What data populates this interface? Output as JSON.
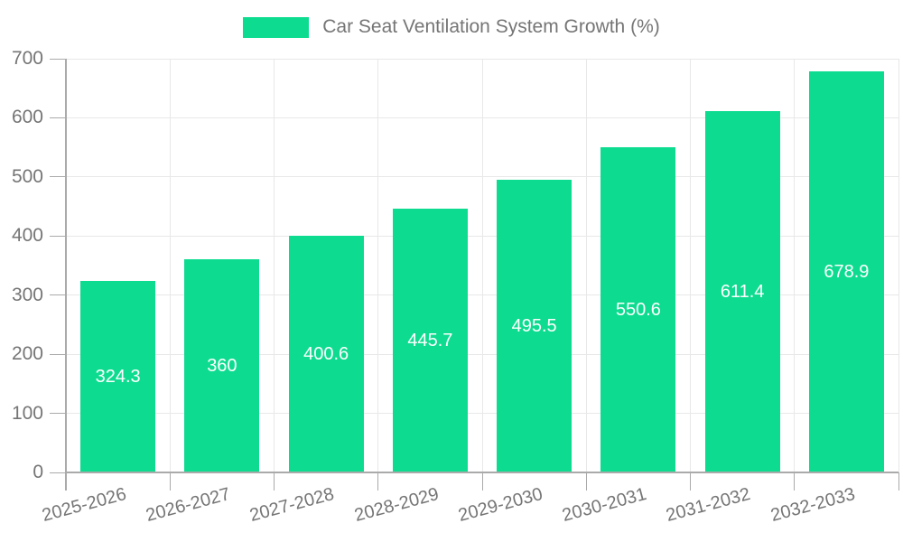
{
  "legend": {
    "label": "Car Seat Ventilation System Growth (%)"
  },
  "colors": {
    "bar": "#0ddc90",
    "axis": "#aaaaaa",
    "grid": "#e8e8e8",
    "tick_label": "#757575",
    "value_label": "#ffffff",
    "background": "#ffffff"
  },
  "chart_data": {
    "type": "bar",
    "title": "Car Seat Ventilation System Growth (%)",
    "categories": [
      "2025-2026",
      "2026-2027",
      "2027-2028",
      "2028-2029",
      "2029-2030",
      "2030-2031",
      "2031-2032",
      "2032-2033"
    ],
    "values": [
      324.3,
      360,
      400.6,
      445.7,
      495.5,
      550.6,
      611.4,
      678.9
    ],
    "value_labels": [
      "324.3",
      "360",
      "400.6",
      "445.7",
      "495.5",
      "550.6",
      "611.4",
      "678.9"
    ],
    "xlabel": "",
    "ylabel": "",
    "ylim": [
      0,
      700
    ],
    "yticks": [
      0,
      100,
      200,
      300,
      400,
      500,
      600,
      700
    ],
    "grid": true,
    "legend_position": "top-center",
    "value_label_position": "inside-center",
    "xtick_rotation_deg": -15
  }
}
